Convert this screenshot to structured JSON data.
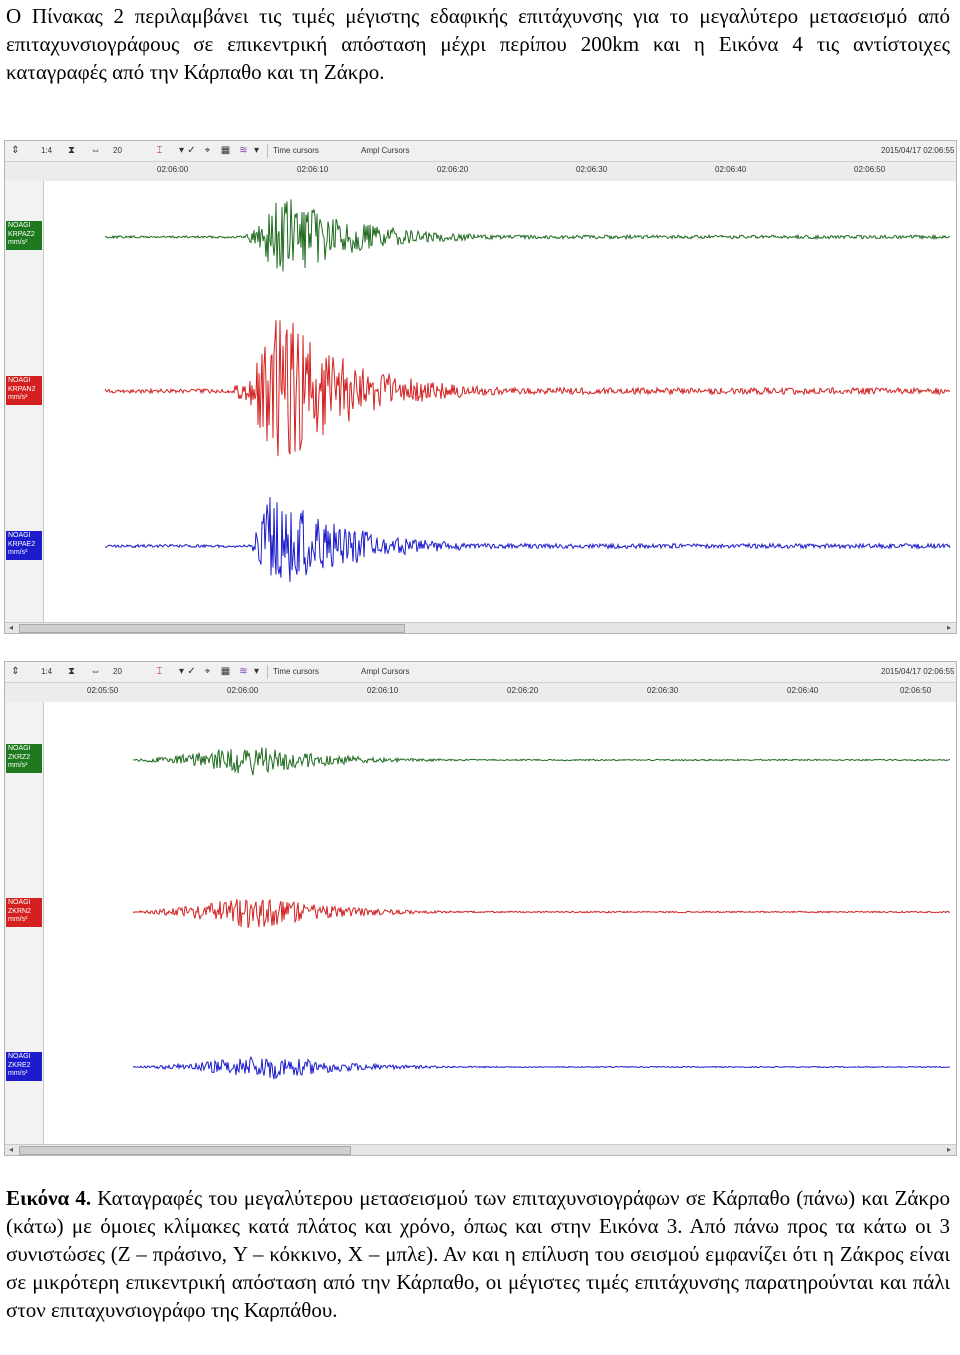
{
  "intro": "Ο Πίνακας 2 περιλαμβάνει τις τιμές μέγιστης εδαφικής επιτάχυνσης για το μεγαλύτερο μετασεισμό από επιταχυνσιογράφους σε επικεντρική απόσταση μέχρι περίπου 200km και η Εικόνα 4 τις αντίστοιχες καταγραφές από την Κάρπαθο και τη Ζάκρο.",
  "panels": [
    {
      "toolbar": {
        "scale": "1:4",
        "count": "20",
        "time_cursors": "Time cursors",
        "ampl_cursors": "Ampl Cursors",
        "datetime": "2015/04/17 02:06:55"
      },
      "ticks": [
        "02:06:00",
        "02:06:10",
        "02:06:20",
        "02:06:30",
        "02:06:40",
        "02:06:50"
      ],
      "channels": [
        {
          "label": [
            "NOAGI",
            "KRPAZ2",
            "mm/s²"
          ],
          "color": "#1f6b1f",
          "peak": 0.55
        },
        {
          "label": [
            "NOAGI",
            "KRPAN2",
            "mm/s²"
          ],
          "color": "#d42020",
          "peak": 1.0
        },
        {
          "label": [
            "NOAGI",
            "KRPAE2",
            "mm/s²"
          ],
          "color": "#1c1ccc",
          "peak": 0.72
        }
      ]
    },
    {
      "toolbar": {
        "scale": "1:4",
        "count": "20",
        "time_cursors": "Time cursors",
        "ampl_cursors": "Ampl Cursors",
        "datetime": "2015/04/17 02:06:55"
      },
      "ticks": [
        "02:05:50",
        "02:06:00",
        "02:06:10",
        "02:06:20",
        "02:06:30",
        "02:06:40",
        "02:06:50"
      ],
      "channels": [
        {
          "label": [
            "NOAGI",
            "ZKRZ2",
            "mm/s²"
          ],
          "color": "#1f6b1f",
          "peak": 0.2
        },
        {
          "label": [
            "NOAGI",
            "ZKRN2",
            "mm/s²"
          ],
          "color": "#d42020",
          "peak": 0.22
        },
        {
          "label": [
            "NOAGI",
            "ZKRE2",
            "mm/s²"
          ],
          "color": "#1c1ccc",
          "peak": 0.16
        }
      ]
    }
  ],
  "caption": {
    "label": "Εικόνα 4.",
    "text": " Καταγραφές του μεγαλύτερου μετασεισμού των επιταχυνσιογράφων σε Κάρπαθο (πάνω) και Ζάκρο (κάτω) με όμοιες κλίμακες κατά πλάτος και χρόνο, όπως και στην Εικόνα 3. Από πάνω προς τα κάτω οι 3 συνιστώσες (Z – πράσινο, Y – κόκκινο, X – μπλε). Αν και η επίλυση του σεισμού εμφανίζει ότι η Ζάκρος είναι σε μικρότερη επικεντρική απόσταση από την Κάρπαθο, οι μέγιστες τιμές επιτάχυνσης παρατηρούνται και πάλι στον επιταχυνσιογράφο της Καρπάθου."
  }
}
